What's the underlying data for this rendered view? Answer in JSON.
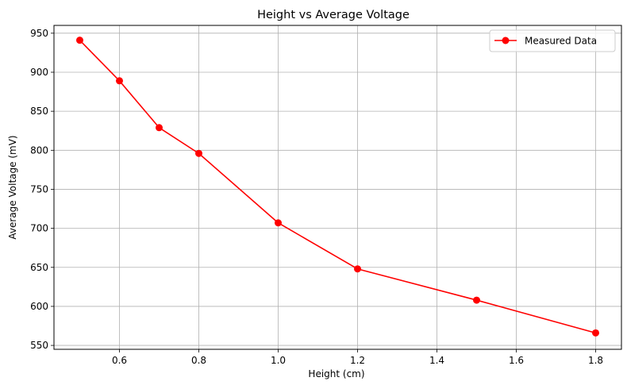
{
  "chart_data": {
    "type": "line",
    "title": "Height vs Average Voltage",
    "xlabel": "Height (cm)",
    "ylabel": "Average Voltage (mV)",
    "xlim": [
      0.435,
      1.865
    ],
    "ylim": [
      545,
      960
    ],
    "xticks": [
      0.6,
      0.8,
      1.0,
      1.2,
      1.4,
      1.6,
      1.8
    ],
    "xtick_labels": [
      "0.6",
      "0.8",
      "1.0",
      "1.2",
      "1.4",
      "1.6",
      "1.8"
    ],
    "yticks": [
      550,
      600,
      650,
      700,
      750,
      800,
      850,
      900,
      950
    ],
    "ytick_labels": [
      "550",
      "600",
      "650",
      "700",
      "750",
      "800",
      "850",
      "900",
      "950"
    ],
    "grid": true,
    "legend_position": "top-right",
    "series": [
      {
        "name": "Measured Data",
        "color": "#ff0000",
        "marker": "circle",
        "x": [
          0.5,
          0.6,
          0.7,
          0.8,
          1.0,
          1.2,
          1.5,
          1.8
        ],
        "y": [
          941,
          889,
          829,
          796,
          707,
          648,
          608,
          566
        ]
      }
    ]
  }
}
